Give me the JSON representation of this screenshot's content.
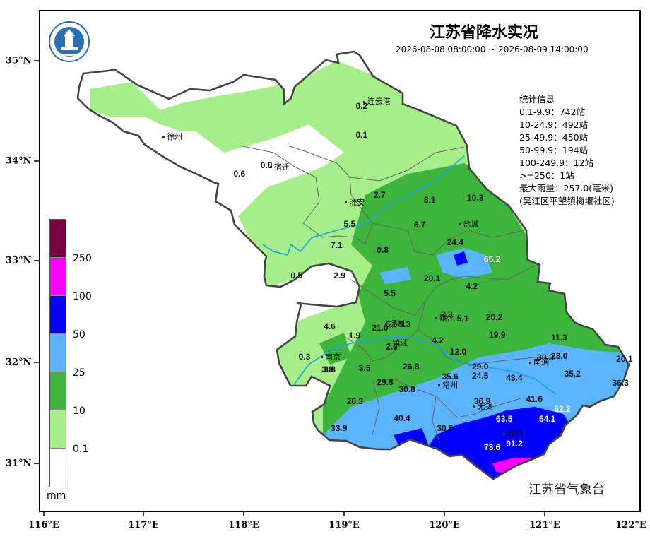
{
  "title": "江苏省降水实况",
  "period": "2026-08-08 08:00:00 ~ 2026-08-09 14:00:00",
  "stats": {
    "heading": "统计信息",
    "lines": [
      "0.1-9.9：742站",
      "10-24.9：492站",
      "25-49.9：450站",
      "50-99.9：194站",
      "100-249.9：12站",
      ">=250：1站",
      "最大雨量：257.0(毫米)",
      "(吴江区平望镇梅堰社区)"
    ]
  },
  "agency": "江苏省气象台",
  "axes": {
    "x_ticks": [
      "116°E",
      "117°E",
      "118°E",
      "119°E",
      "120°E",
      "121°E",
      "122°E"
    ],
    "y_ticks": [
      "35°N",
      "34°N",
      "33°N",
      "32°N",
      "31°N"
    ]
  },
  "legend": {
    "unit": "mm",
    "levels": [
      {
        "label": "250",
        "color": "#7a0040"
      },
      {
        "label": "100",
        "color": "#ff00ff"
      },
      {
        "label": "50",
        "color": "#0000ff"
      },
      {
        "label": "25",
        "color": "#5ab4ff"
      },
      {
        "label": "10",
        "color": "#3db53d"
      },
      {
        "label": "0.1",
        "color": "#a6ee8a"
      },
      {
        "label": "",
        "color": "#ffffff"
      }
    ]
  },
  "cities": [
    {
      "name": "连云港",
      "lon": 119.2,
      "lat": 34.6
    },
    {
      "name": "徐州",
      "lon": 117.2,
      "lat": 34.25
    },
    {
      "name": "宿迁",
      "lon": 118.27,
      "lat": 33.95
    },
    {
      "name": "淮安",
      "lon": 119.02,
      "lat": 33.6
    },
    {
      "name": "盐城",
      "lon": 120.16,
      "lat": 33.38
    },
    {
      "name": "扬州",
      "lon": 119.42,
      "lat": 32.39
    },
    {
      "name": "泰州",
      "lon": 119.92,
      "lat": 32.45
    },
    {
      "name": "南京",
      "lon": 118.78,
      "lat": 32.06
    },
    {
      "name": "镇江",
      "lon": 119.45,
      "lat": 32.2
    },
    {
      "name": "南通",
      "lon": 120.86,
      "lat": 32.01
    },
    {
      "name": "常州",
      "lon": 119.95,
      "lat": 31.78
    },
    {
      "name": "无锡",
      "lon": 120.3,
      "lat": 31.57
    },
    {
      "name": "苏州",
      "lon": 120.6,
      "lat": 31.3
    }
  ],
  "values": [
    {
      "text": "0.2",
      "lon": 119.17,
      "lat": 34.55
    },
    {
      "text": "0.1",
      "lon": 119.17,
      "lat": 34.26
    },
    {
      "text": "0.6",
      "lon": 117.95,
      "lat": 33.88
    },
    {
      "text": "0.8",
      "lon": 118.22,
      "lat": 33.96
    },
    {
      "text": "2.7",
      "lon": 119.35,
      "lat": 33.67
    },
    {
      "text": "5.5",
      "lon": 119.05,
      "lat": 33.38
    },
    {
      "text": "8.1",
      "lon": 119.85,
      "lat": 33.62
    },
    {
      "text": "10.3",
      "lon": 120.28,
      "lat": 33.64
    },
    {
      "text": "6.7",
      "lon": 119.75,
      "lat": 33.37
    },
    {
      "text": "7.1",
      "lon": 118.92,
      "lat": 33.17
    },
    {
      "text": "0.8",
      "lon": 119.38,
      "lat": 33.12
    },
    {
      "text": "24.4",
      "lon": 120.08,
      "lat": 33.2
    },
    {
      "text": "65.2",
      "lon": 120.45,
      "lat": 33.03,
      "light": true
    },
    {
      "text": "0.5",
      "lon": 118.52,
      "lat": 32.87
    },
    {
      "text": "2.9",
      "lon": 118.95,
      "lat": 32.87
    },
    {
      "text": "20.1",
      "lon": 119.85,
      "lat": 32.84
    },
    {
      "text": "4.2",
      "lon": 120.27,
      "lat": 32.76
    },
    {
      "text": "5.5",
      "lon": 119.45,
      "lat": 32.69
    },
    {
      "text": "2.3",
      "lon": 120.02,
      "lat": 32.48
    },
    {
      "text": "5.1",
      "lon": 120.18,
      "lat": 32.44
    },
    {
      "text": "20.2",
      "lon": 120.47,
      "lat": 32.45
    },
    {
      "text": "4.6",
      "lon": 118.85,
      "lat": 32.36
    },
    {
      "text": "21.0",
      "lon": 119.33,
      "lat": 32.35
    },
    {
      "text": "5.5",
      "lon": 119.47,
      "lat": 32.38
    },
    {
      "text": "5.3",
      "lon": 119.6,
      "lat": 32.38
    },
    {
      "text": "19.9",
      "lon": 120.5,
      "lat": 32.28
    },
    {
      "text": "11.3",
      "lon": 121.12,
      "lat": 32.25
    },
    {
      "text": "1.9",
      "lon": 119.1,
      "lat": 32.27
    },
    {
      "text": "4.2",
      "lon": 119.93,
      "lat": 32.22
    },
    {
      "text": "2.9",
      "lon": 119.47,
      "lat": 32.16
    },
    {
      "text": "12.0",
      "lon": 120.11,
      "lat": 32.11
    },
    {
      "text": "0.3",
      "lon": 118.6,
      "lat": 32.06
    },
    {
      "text": "30.3",
      "lon": 120.98,
      "lat": 32.05
    },
    {
      "text": "28.0",
      "lon": 121.12,
      "lat": 32.07
    },
    {
      "text": "20.1",
      "lon": 121.77,
      "lat": 32.04
    },
    {
      "text": "26.8",
      "lon": 119.64,
      "lat": 31.96
    },
    {
      "text": "29.0",
      "lon": 120.33,
      "lat": 31.96
    },
    {
      "text": "3.5",
      "lon": 119.2,
      "lat": 31.95
    },
    {
      "text": "3.8",
      "lon": 118.83,
      "lat": 31.93
    },
    {
      "text": "3.8",
      "lon": 118.85,
      "lat": 31.93
    },
    {
      "text": "35.6",
      "lon": 120.03,
      "lat": 31.86
    },
    {
      "text": "24.5",
      "lon": 120.33,
      "lat": 31.87
    },
    {
      "text": "43.4",
      "lon": 120.67,
      "lat": 31.85
    },
    {
      "text": "35.2",
      "lon": 121.25,
      "lat": 31.89
    },
    {
      "text": "29.8",
      "lon": 119.38,
      "lat": 31.81
    },
    {
      "text": "30.8",
      "lon": 119.6,
      "lat": 31.74
    },
    {
      "text": "36.3",
      "lon": 121.73,
      "lat": 31.8
    },
    {
      "text": "28.3",
      "lon": 119.08,
      "lat": 31.62
    },
    {
      "text": "36.9",
      "lon": 120.35,
      "lat": 31.62
    },
    {
      "text": "41.6",
      "lon": 120.87,
      "lat": 31.64
    },
    {
      "text": "62.2",
      "lon": 121.15,
      "lat": 31.54,
      "light": true
    },
    {
      "text": "40.4",
      "lon": 119.55,
      "lat": 31.45
    },
    {
      "text": "63.5",
      "lon": 120.57,
      "lat": 31.44,
      "light": true
    },
    {
      "text": "54.1",
      "lon": 121.0,
      "lat": 31.44,
      "light": true
    },
    {
      "text": "33.9",
      "lon": 118.92,
      "lat": 31.35
    },
    {
      "text": "30.6",
      "lon": 119.98,
      "lat": 31.35
    },
    {
      "text": "91.2",
      "lon": 120.67,
      "lat": 31.2,
      "light": true
    },
    {
      "text": "73.6",
      "lon": 120.45,
      "lat": 31.16,
      "light": true
    }
  ]
}
